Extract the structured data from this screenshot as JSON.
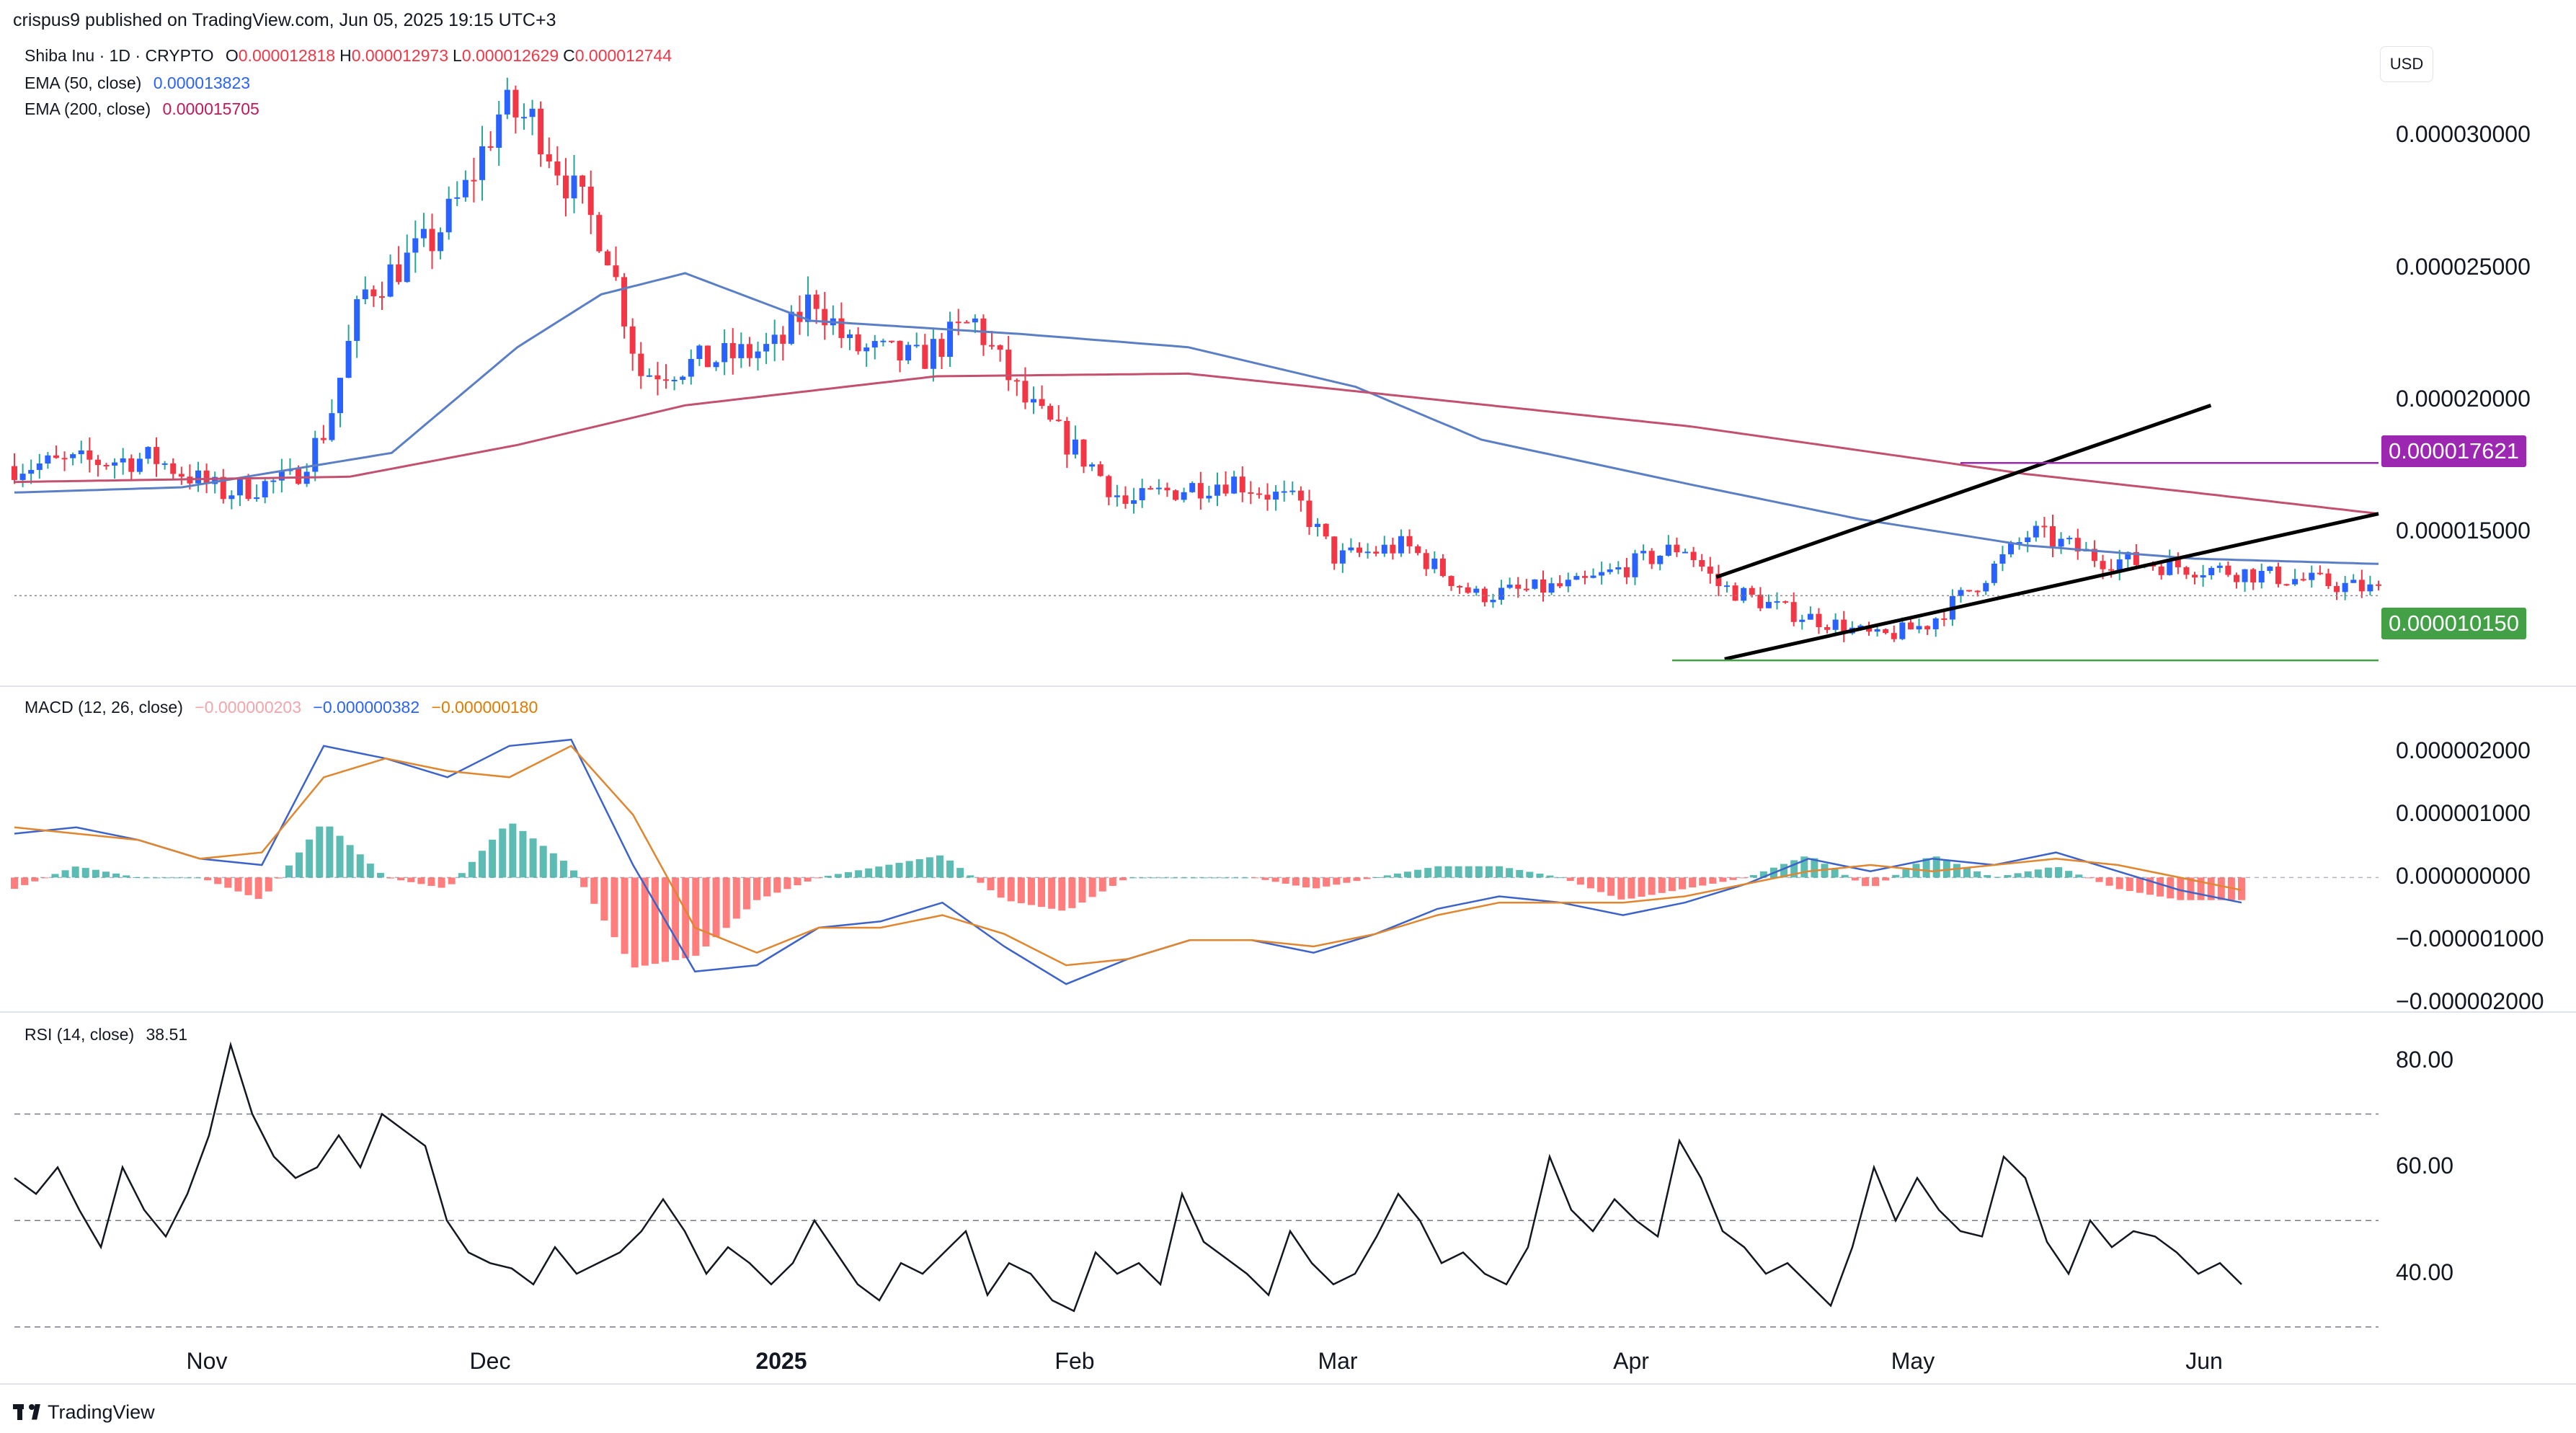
{
  "header": {
    "published": "crispus9 published on TradingView.com, Jun 05, 2025 19:15 UTC+3",
    "symbol": "Shiba Inu · 1D · CRYPTO",
    "ohlc": [
      {
        "k": "O",
        "v": "0.000012818"
      },
      {
        "k": "H",
        "v": "0.000012973"
      },
      {
        "k": "L",
        "v": "0.000012629"
      },
      {
        "k": "C",
        "v": "0.000012744"
      }
    ],
    "ema50_label": "EMA (50, close)",
    "ema50_value": "0.000013823",
    "ema200_label": "EMA (200, close)",
    "ema200_value": "0.000015705",
    "currency": "USD"
  },
  "macd_legend": {
    "label": "MACD (12, 26, close)",
    "hist": "−0.000000203",
    "macd": "−0.000000382",
    "signal": "−0.000000180"
  },
  "rsi_legend": {
    "label": "RSI (14, close)",
    "value": "38.51"
  },
  "price_tags": {
    "resistance": "0.000017621",
    "support": "0.000010150"
  },
  "footer": {
    "brand": "TradingView"
  },
  "colors": {
    "up": "#26a69a",
    "up_body": "#2962ff",
    "down": "#f23645",
    "ema50": "#5b7fc4",
    "ema200": "#c2506e",
    "macd": "#3c63c9",
    "signal": "#e0862f",
    "resistance": "#9c27b0",
    "support": "#43a047"
  },
  "chart_data": [
    {
      "type": "candlestick",
      "title": "Shiba Inu · 1D · CRYPTO",
      "x_ticks": [
        "Nov",
        "Dec",
        "2025",
        "Feb",
        "Mar",
        "Apr",
        "May",
        "Jun"
      ],
      "y_ticks": [
        "0.000030000",
        "0.000025000",
        "0.000020000",
        "0.000015000"
      ],
      "ylim": [
        9.5e-06,
        3.35e-05
      ],
      "series": [
        {
          "name": "EMA (50, close)",
          "type": "line",
          "approx_path": [
            [
              0,
              1.65e-05
            ],
            [
              20,
              1.67e-05
            ],
            [
              45,
              1.8e-05
            ],
            [
              60,
              2.2e-05
            ],
            [
              70,
              2.4e-05
            ],
            [
              80,
              2.48e-05
            ],
            [
              95,
              2.3e-05
            ],
            [
              120,
              2.25e-05
            ],
            [
              140,
              2.2e-05
            ],
            [
              160,
              2.05e-05
            ],
            [
              175,
              1.85e-05
            ],
            [
              200,
              1.68e-05
            ],
            [
              220,
              1.55e-05
            ],
            [
              240,
              1.45e-05
            ],
            [
              260,
              1.4e-05
            ],
            [
              282,
              1.38e-05
            ]
          ]
        },
        {
          "name": "EMA (200, close)",
          "type": "line",
          "approx_path": [
            [
              0,
              1.69e-05
            ],
            [
              40,
              1.71e-05
            ],
            [
              60,
              1.83e-05
            ],
            [
              80,
              1.98e-05
            ],
            [
              110,
              2.09e-05
            ],
            [
              140,
              2.1e-05
            ],
            [
              170,
              2e-05
            ],
            [
              200,
              1.9e-05
            ],
            [
              240,
              1.72e-05
            ],
            [
              260,
              1.65e-05
            ],
            [
              282,
              1.57e-05
            ]
          ]
        }
      ],
      "annotations": [
        {
          "type": "rising_wedge",
          "upper": [
            [
              203,
              1.33e-05
            ],
            [
              262,
              1.98e-05
            ]
          ],
          "lower": [
            [
              204,
              1.02e-05
            ],
            [
              282,
              1.57e-05
            ]
          ]
        },
        {
          "type": "horizontal_line",
          "value": 1.7621e-05,
          "label": "0.000017621"
        },
        {
          "type": "horizontal_line",
          "value": 1.015e-05,
          "label": "0.000010150"
        }
      ]
    },
    {
      "type": "line",
      "title": "MACD (12, 26, close)",
      "y_ticks": [
        "0.000002000",
        "0.000001000",
        "0.000000000",
        "−0.000001000",
        "−0.000002000"
      ],
      "ylim": [
        -2.1e-06,
        2.5e-06
      ],
      "series": [
        {
          "name": "MACD",
          "values": [
            7e-07,
            8e-07,
            6e-07,
            3e-07,
            2e-07,
            2.1e-06,
            1.9e-06,
            1.6e-06,
            2.1e-06,
            2.2e-06,
            2e-07,
            -1.5e-06,
            -1.4e-06,
            -8e-07,
            -7e-07,
            -4e-07,
            -1.1e-06,
            -1.7e-06,
            -1.3e-06,
            -1e-06,
            -1e-06,
            -1.2e-06,
            -9e-07,
            -5e-07,
            -3e-07,
            -4e-07,
            -6e-07,
            -4e-07,
            -1e-07,
            3e-07,
            1e-07,
            3e-07,
            2e-07,
            4e-07,
            1e-07,
            -2e-07,
            -4e-07
          ]
        },
        {
          "name": "Signal",
          "values": [
            8e-07,
            7e-07,
            6e-07,
            3e-07,
            4e-07,
            1.6e-06,
            1.9e-06,
            1.7e-06,
            1.6e-06,
            2.1e-06,
            1e-06,
            -8e-07,
            -1.2e-06,
            -8e-07,
            -8e-07,
            -6e-07,
            -9e-07,
            -1.4e-06,
            -1.3e-06,
            -1e-06,
            -1e-06,
            -1.1e-06,
            -9e-07,
            -6e-07,
            -4e-07,
            -4e-07,
            -4e-07,
            -3e-07,
            -1e-07,
            1e-07,
            2e-07,
            1e-07,
            2e-07,
            3e-07,
            2e-07,
            0.0,
            -2e-07
          ]
        }
      ]
    },
    {
      "type": "line",
      "title": "RSI (14, close)",
      "y_ticks": [
        "80.00",
        "60.00",
        "40.00"
      ],
      "ylim": [
        22,
        87
      ],
      "levels": [
        70,
        50,
        30
      ],
      "series": [
        {
          "name": "RSI",
          "values": [
            58,
            55,
            60,
            52,
            45,
            60,
            52,
            47,
            55,
            66,
            83,
            70,
            62,
            58,
            60,
            66,
            60,
            70,
            67,
            64,
            50,
            44,
            42,
            41,
            38,
            45,
            40,
            42,
            44,
            48,
            54,
            48,
            40,
            45,
            42,
            38,
            42,
            50,
            44,
            38,
            35,
            42,
            40,
            44,
            48,
            36,
            42,
            40,
            35,
            33,
            44,
            40,
            42,
            38,
            55,
            46,
            43,
            40,
            36,
            48,
            42,
            38,
            40,
            47,
            55,
            50,
            42,
            44,
            40,
            38,
            45,
            62,
            52,
            48,
            54,
            50,
            47,
            65,
            58,
            48,
            45,
            40,
            42,
            38,
            34,
            45,
            60,
            50,
            58,
            52,
            48,
            47,
            62,
            58,
            46,
            40,
            50,
            45,
            48,
            47,
            44,
            40,
            42,
            38
          ]
        }
      ]
    }
  ]
}
